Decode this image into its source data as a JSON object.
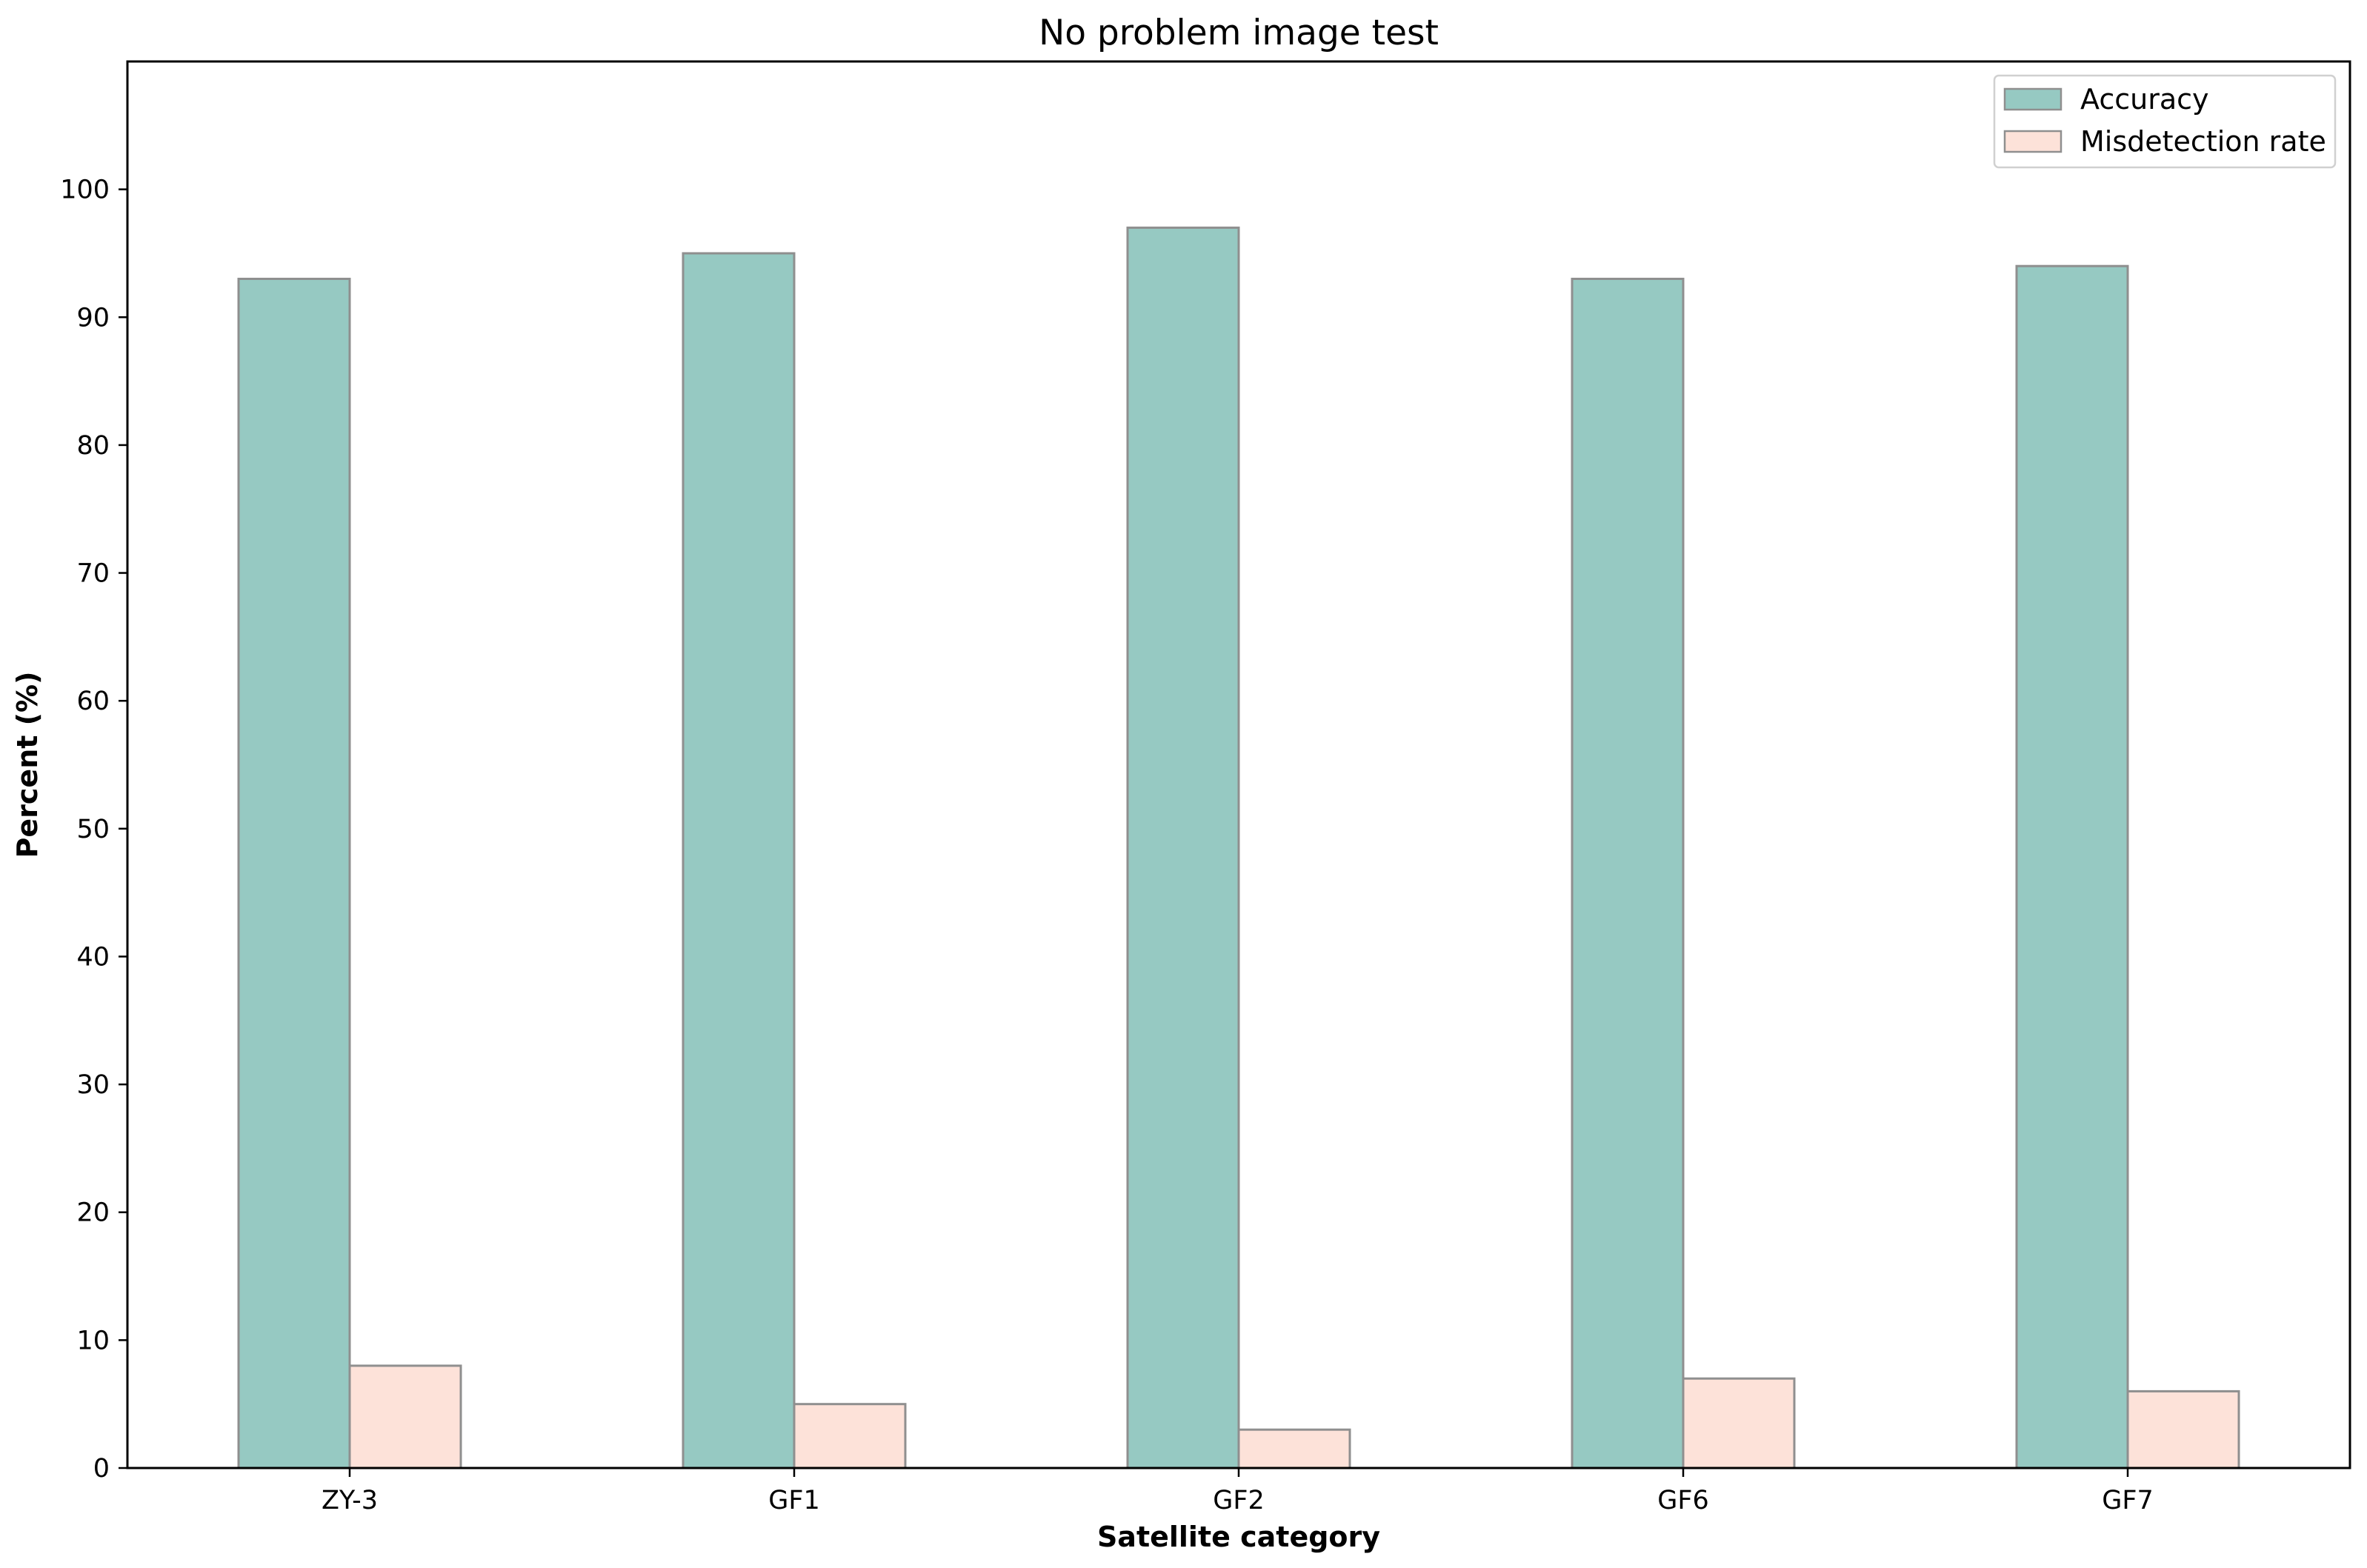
{
  "chart_data": {
    "type": "bar",
    "title": "No problem image test",
    "xlabel": "Satellite category",
    "ylabel": "Percent (%)",
    "categories": [
      "ZY-3",
      "GF1",
      "GF2",
      "GF6",
      "GF7"
    ],
    "series": [
      {
        "name": "Accuracy",
        "values": [
          93,
          95,
          97,
          93,
          94
        ],
        "color": "#96c9c2"
      },
      {
        "name": "Misdetection rate",
        "values": [
          8,
          5,
          3,
          7,
          6
        ],
        "color": "#fde2d9"
      }
    ],
    "ylim": [
      0,
      110
    ],
    "yticks": [
      0,
      10,
      20,
      30,
      40,
      50,
      60,
      70,
      80,
      90,
      100
    ],
    "grid": false,
    "legend_position": "top-right",
    "bar_edge_color": "#8f8f8f"
  }
}
